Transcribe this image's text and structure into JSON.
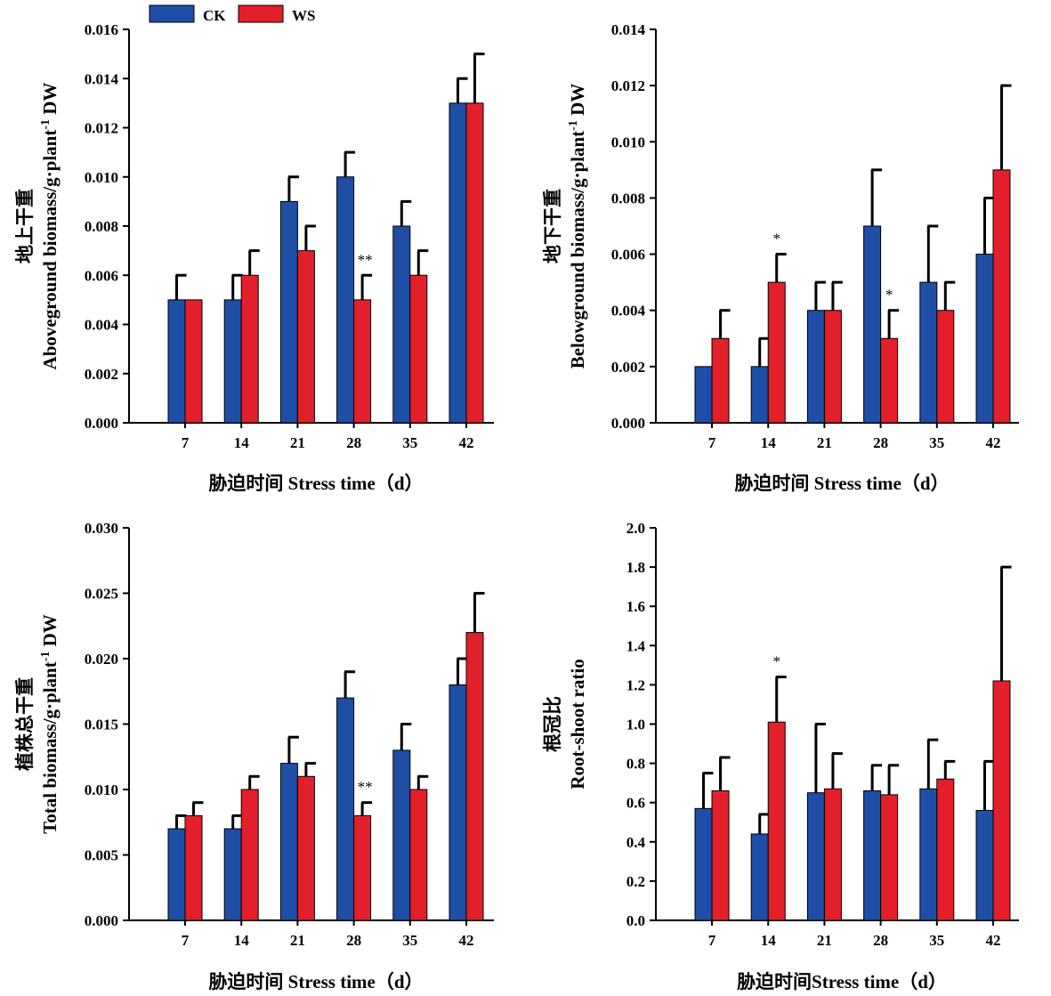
{
  "legend": [
    {
      "label": "CK",
      "color": "#1e4ea6"
    },
    {
      "label": "WS",
      "color": "#e3202a"
    }
  ],
  "colors": {
    "CK": "#1e4ea6",
    "WS": "#e3202a",
    "axis": "#000000",
    "error_bar": "#000000"
  },
  "chart_data": [
    {
      "type": "bar",
      "ylabel_cn": "地上干重",
      "ylabel_en": "Aboveground biomass/g·plant",
      "ylabel_sup": "-1",
      "ylabel_suffix": " DW",
      "xlabel": "胁迫时间 Stress time（d）",
      "categories": [
        "7",
        "14",
        "21",
        "28",
        "35",
        "42"
      ],
      "ylim": [
        0,
        0.016
      ],
      "yticks": [
        "0.000",
        "0.002",
        "0.004",
        "0.006",
        "0.008",
        "0.010",
        "0.012",
        "0.014",
        "0.016"
      ],
      "series": [
        {
          "name": "CK",
          "values": [
            0.005,
            0.005,
            0.009,
            0.01,
            0.008,
            0.013
          ],
          "errors": [
            0.001,
            0.001,
            0.001,
            0.001,
            0.001,
            0.001
          ]
        },
        {
          "name": "WS",
          "values": [
            0.005,
            0.006,
            0.007,
            0.005,
            0.006,
            0.013
          ],
          "errors": [
            0.0,
            0.001,
            0.001,
            0.001,
            0.001,
            0.002
          ]
        }
      ],
      "annotations": [
        {
          "category": "28",
          "text": "**"
        }
      ],
      "grid": false,
      "legend_position": "top"
    },
    {
      "type": "bar",
      "ylabel_cn": "地下干重",
      "ylabel_en": "Belowground biomass/g·plant",
      "ylabel_sup": "-1",
      "ylabel_suffix": " DW",
      "xlabel": "胁迫时间 Stress time（d）",
      "categories": [
        "7",
        "14",
        "21",
        "28",
        "35",
        "42"
      ],
      "ylim": [
        0,
        0.014
      ],
      "yticks": [
        "0.000",
        "0.002",
        "0.004",
        "0.006",
        "0.008",
        "0.010",
        "0.012",
        "0.014"
      ],
      "series": [
        {
          "name": "CK",
          "values": [
            0.002,
            0.002,
            0.004,
            0.007,
            0.005,
            0.006
          ],
          "errors": [
            0.0,
            0.001,
            0.001,
            0.002,
            0.002,
            0.002
          ]
        },
        {
          "name": "WS",
          "values": [
            0.003,
            0.005,
            0.004,
            0.003,
            0.004,
            0.009
          ],
          "errors": [
            0.001,
            0.001,
            0.001,
            0.001,
            0.001,
            0.003
          ]
        }
      ],
      "annotations": [
        {
          "category": "14",
          "text": "*"
        },
        {
          "category": "28",
          "text": "*"
        }
      ],
      "grid": false
    },
    {
      "type": "bar",
      "ylabel_cn": "植株总干重",
      "ylabel_en": "Total biomass/g·plant",
      "ylabel_sup": "-1",
      "ylabel_suffix": " DW",
      "xlabel": "胁迫时间 Stress time（d）",
      "categories": [
        "7",
        "14",
        "21",
        "28",
        "35",
        "42"
      ],
      "ylim": [
        0,
        0.03
      ],
      "yticks": [
        "0.000",
        "0.005",
        "0.010",
        "0.015",
        "0.020",
        "0.025",
        "0.030"
      ],
      "series": [
        {
          "name": "CK",
          "values": [
            0.007,
            0.007,
            0.012,
            0.017,
            0.013,
            0.018
          ],
          "errors": [
            0.001,
            0.001,
            0.002,
            0.002,
            0.002,
            0.002
          ]
        },
        {
          "name": "WS",
          "values": [
            0.008,
            0.01,
            0.011,
            0.008,
            0.01,
            0.022
          ],
          "errors": [
            0.001,
            0.001,
            0.001,
            0.001,
            0.001,
            0.003
          ]
        }
      ],
      "annotations": [
        {
          "category": "28",
          "text": "**"
        }
      ],
      "grid": false
    },
    {
      "type": "bar",
      "ylabel_cn": "根冠比",
      "ylabel_en": "Root-shoot ratio",
      "ylabel_sup": "",
      "ylabel_suffix": "",
      "xlabel": "胁迫时间Stress time（d）",
      "categories": [
        "7",
        "14",
        "21",
        "28",
        "35",
        "42"
      ],
      "ylim": [
        0,
        2.0
      ],
      "yticks": [
        "0.0",
        "0.2",
        "0.4",
        "0.6",
        "0.8",
        "1.0",
        "1.2",
        "1.4",
        "1.6",
        "1.8",
        "2.0"
      ],
      "series": [
        {
          "name": "CK",
          "values": [
            0.57,
            0.44,
            0.65,
            0.66,
            0.67,
            0.56
          ],
          "errors": [
            0.18,
            0.1,
            0.35,
            0.13,
            0.25,
            0.25
          ]
        },
        {
          "name": "WS",
          "values": [
            0.66,
            1.01,
            0.67,
            0.64,
            0.72,
            1.22
          ],
          "errors": [
            0.17,
            0.23,
            0.18,
            0.15,
            0.09,
            0.58
          ]
        }
      ],
      "annotations": [
        {
          "category": "14",
          "text": "*"
        }
      ],
      "grid": false
    }
  ]
}
